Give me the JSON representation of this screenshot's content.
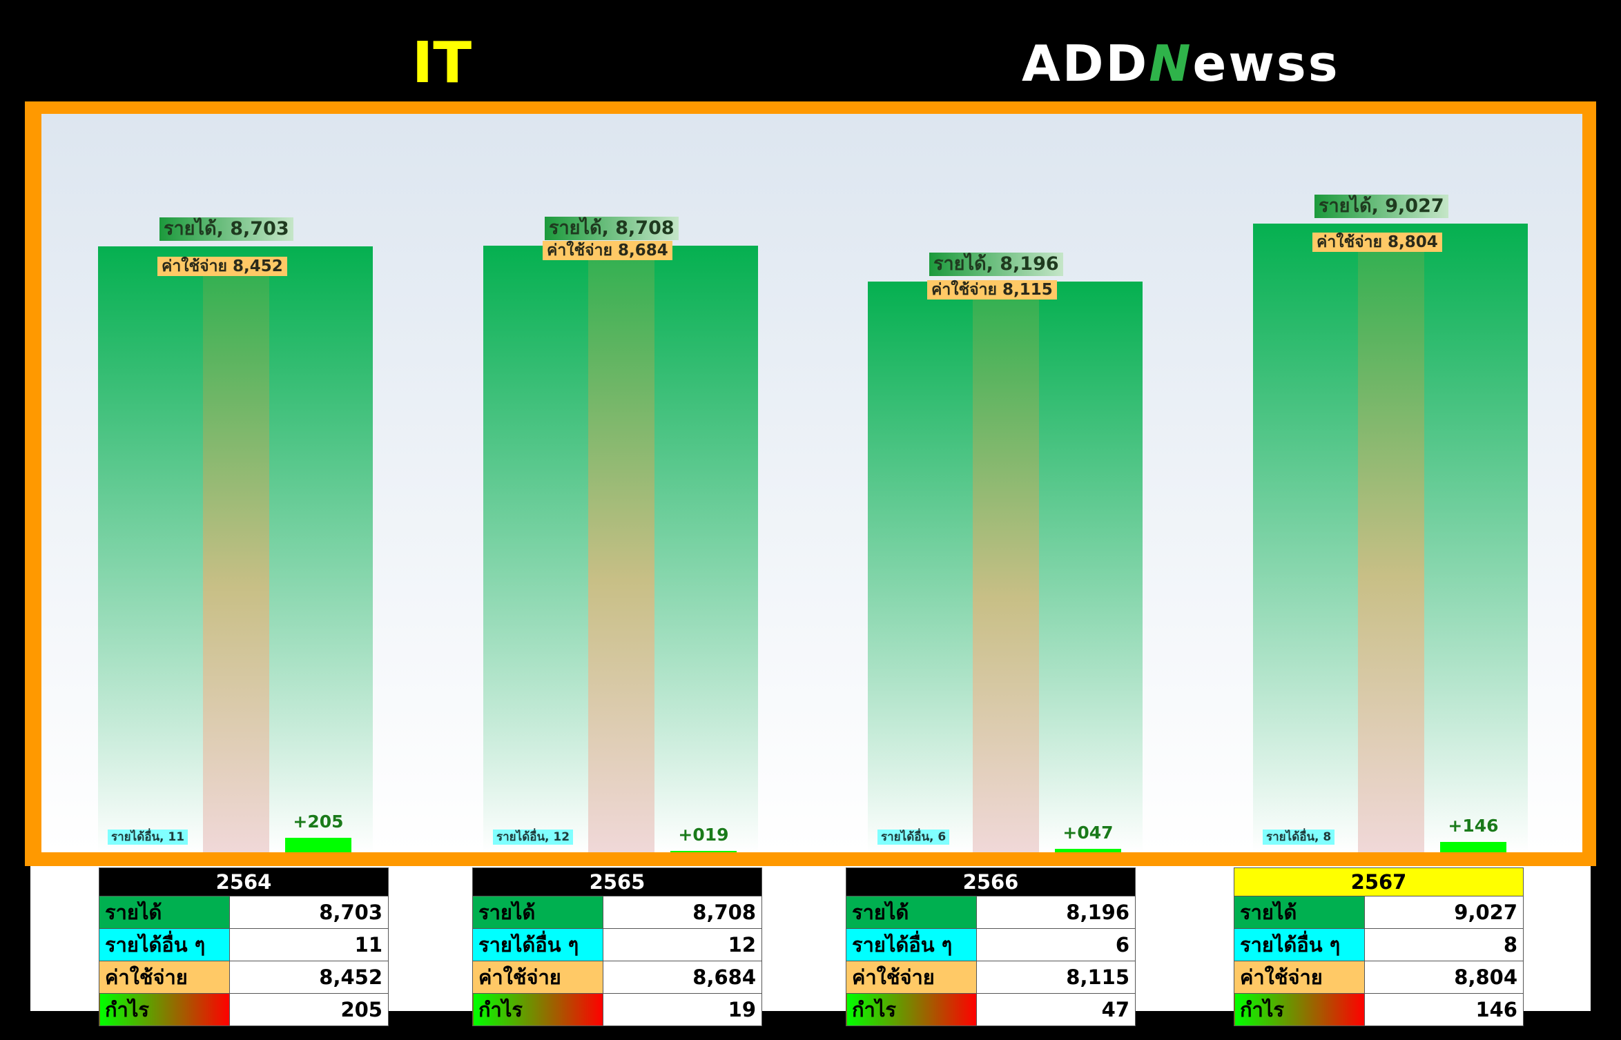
{
  "header": {
    "title": "IT",
    "logo_prefix": "ADD",
    "logo_n": "N",
    "logo_suffix": "ewss"
  },
  "chart_data": {
    "type": "bar",
    "categories": [
      "2564",
      "2565",
      "2566",
      "2567"
    ],
    "series": [
      {
        "name": "รายได้",
        "values": [
          8703,
          8708,
          8196,
          9027
        ]
      },
      {
        "name": "รายได้อื่น ๆ",
        "values": [
          11,
          12,
          6,
          8
        ]
      },
      {
        "name": "ค่าใช้จ่าย",
        "values": [
          8452,
          8684,
          8115,
          8804
        ]
      },
      {
        "name": "กำไร",
        "values": [
          205,
          19,
          47,
          146
        ]
      }
    ],
    "bar_labels": {
      "income": [
        "รายได้, 8,703",
        "รายได้, 8,708",
        "รายได้, 8,196",
        "รายได้, 9,027"
      ],
      "expense": [
        "ค่าใช้จ่าย 8,452",
        "ค่าใช้จ่าย 8,684",
        "ค่าใช้จ่าย 8,115",
        "ค่าใช้จ่าย 8,804"
      ],
      "other": [
        "รายได้อื่น, 11",
        "รายได้อื่น, 12",
        "รายได้อื่น, 6",
        "รายได้อื่น, 8"
      ],
      "profit": [
        "+205",
        "+019",
        "+047",
        "+146"
      ]
    },
    "ylim": [
      0,
      10000
    ],
    "grid": false
  },
  "tables": [
    {
      "year": "2564",
      "highlight": false,
      "rows": [
        {
          "label": "รายได้",
          "value": "8,703"
        },
        {
          "label": "รายได้อื่น ๆ",
          "value": "11"
        },
        {
          "label": "ค่าใช้จ่าย",
          "value": "8,452"
        },
        {
          "label": "กำไร",
          "value": "205"
        }
      ]
    },
    {
      "year": "2565",
      "highlight": false,
      "rows": [
        {
          "label": "รายได้",
          "value": "8,708"
        },
        {
          "label": "รายได้อื่น ๆ",
          "value": "12"
        },
        {
          "label": "ค่าใช้จ่าย",
          "value": "8,684"
        },
        {
          "label": "กำไร",
          "value": "19"
        }
      ]
    },
    {
      "year": "2566",
      "highlight": false,
      "rows": [
        {
          "label": "รายได้",
          "value": "8,196"
        },
        {
          "label": "รายได้อื่น ๆ",
          "value": "6"
        },
        {
          "label": "ค่าใช้จ่าย",
          "value": "8,115"
        },
        {
          "label": "กำไร",
          "value": "47"
        }
      ]
    },
    {
      "year": "2567",
      "highlight": true,
      "rows": [
        {
          "label": "รายได้",
          "value": "9,027"
        },
        {
          "label": "รายได้อื่น ๆ",
          "value": "8"
        },
        {
          "label": "ค่าใช้จ่าย",
          "value": "8,804"
        },
        {
          "label": "กำไร",
          "value": "146"
        }
      ]
    }
  ],
  "colors": {
    "frame": "#ff9900",
    "income": "#00b050",
    "other": "#00ffff",
    "expense": "#ffc966",
    "profit": "#00ff00",
    "title": "#ffff00"
  }
}
